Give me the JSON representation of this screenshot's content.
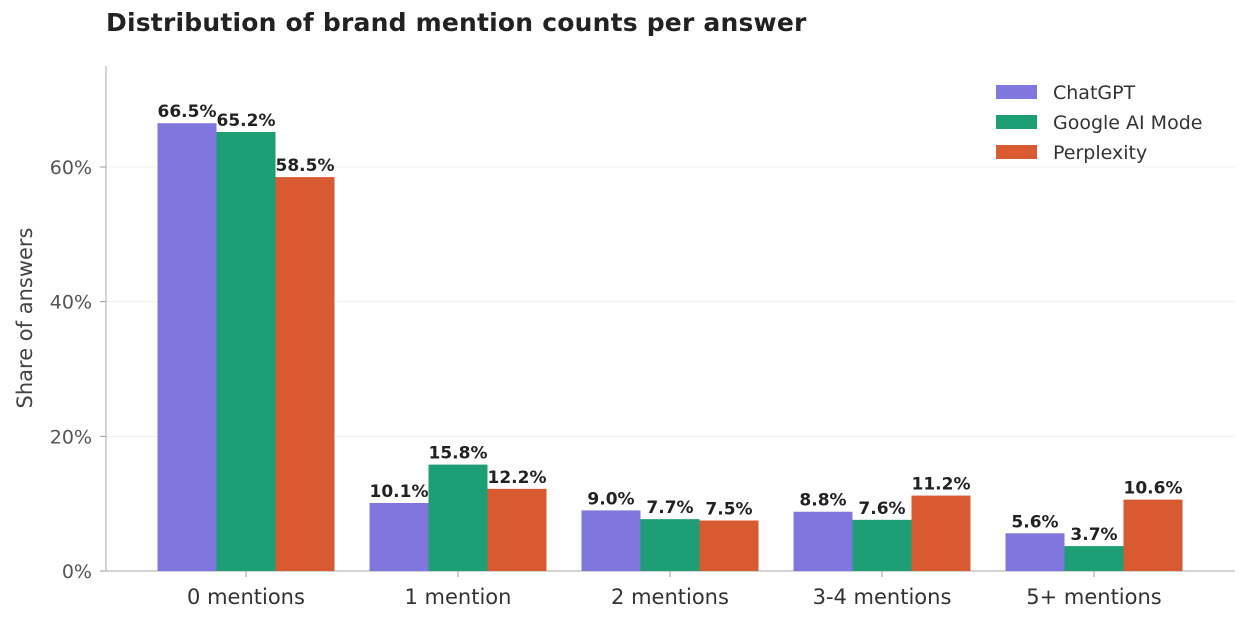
{
  "chart_data": {
    "type": "bar",
    "title": "Distribution of brand mention counts per answer",
    "xlabel": "",
    "ylabel": "Share of answers",
    "categories": [
      "0 mentions",
      "1 mention",
      "2 mentions",
      "3-4 mentions",
      "5+ mentions"
    ],
    "series": [
      {
        "name": "ChatGPT",
        "color": "#7f77dd",
        "values": [
          66.5,
          10.1,
          9.0,
          8.8,
          5.6
        ],
        "labels": [
          "66.5%",
          "10.1%",
          "9.0%",
          "8.8%",
          "5.6%"
        ]
      },
      {
        "name": "Google AI Mode",
        "color": "#1d9e75",
        "values": [
          65.2,
          15.8,
          7.7,
          7.6,
          3.7
        ],
        "labels": [
          "65.2%",
          "15.8%",
          "7.7%",
          "7.6%",
          "3.7%"
        ]
      },
      {
        "name": "Perplexity",
        "color": "#d85a30",
        "values": [
          58.5,
          12.2,
          7.5,
          11.2,
          10.6
        ],
        "labels": [
          "58.5%",
          "12.2%",
          "7.5%",
          "11.2%",
          "10.6%"
        ]
      }
    ],
    "ylim": [
      0,
      75
    ],
    "yticks": [
      0,
      20,
      40,
      60
    ],
    "ytick_labels": [
      "0%",
      "20%",
      "40%",
      "60%"
    ],
    "grid": true,
    "legend_position": "top-right"
  }
}
